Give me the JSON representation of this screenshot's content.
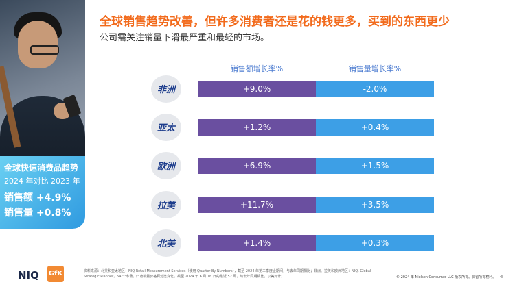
{
  "header": {
    "title": "全球销售趋势改善，但许多消费者还是花的钱更多，买到的东西更少",
    "subtitle": "公司需关注销量下滑最严重和最轻的市场。"
  },
  "callout": {
    "line1": "全球快速消费品趋势",
    "line2": "2024 年对比 2023 年",
    "line3": "销售额 +4.9%",
    "line4": "销售量 +0.8%"
  },
  "chart_data": {
    "type": "table",
    "columns": [
      "销售额增长率%",
      "销售量增长率%"
    ],
    "rows": [
      {
        "region": "非洲",
        "sales_value_growth": 9.0,
        "sales_volume_growth": -2.0,
        "value_label": "+9.0%",
        "volume_label": "-2.0%"
      },
      {
        "region": "亚太",
        "sales_value_growth": 1.2,
        "sales_volume_growth": 0.4,
        "value_label": "+1.2%",
        "volume_label": "+0.4%"
      },
      {
        "region": "欧洲",
        "sales_value_growth": 6.9,
        "sales_volume_growth": 1.5,
        "value_label": "+6.9%",
        "volume_label": "+1.5%"
      },
      {
        "region": "拉美",
        "sales_value_growth": 11.7,
        "sales_volume_growth": 3.5,
        "value_label": "+11.7%",
        "volume_label": "+3.5%"
      },
      {
        "region": "北美",
        "sales_value_growth": 1.4,
        "sales_volume_growth": 0.3,
        "value_label": "+1.4%",
        "volume_label": "+0.3%"
      }
    ],
    "colors": {
      "value": "#6a4fa0",
      "volume": "#3d9fe6"
    }
  },
  "footer": {
    "logo_niq": "NIQ",
    "logo_gfk": "GfK",
    "footnote": "资料来源：北美和亚太地区：NIQ Retail Measurement Services（使用 Quarter By Numbers），截至 2024 年第二季度止期间，与去年同期相比；非洲、拉美和欧洲地区：NIQ, Global Strategic Planner，54 个市场，归功销量价格百分比变化，截至 2024 年 6 月 16 日的最近 52 周，与去年同期相比，以美元计。",
    "copyright": "© 2024 年 Nielsen Consumer LLC 版权所有。保留所有权利。",
    "page": "4"
  }
}
